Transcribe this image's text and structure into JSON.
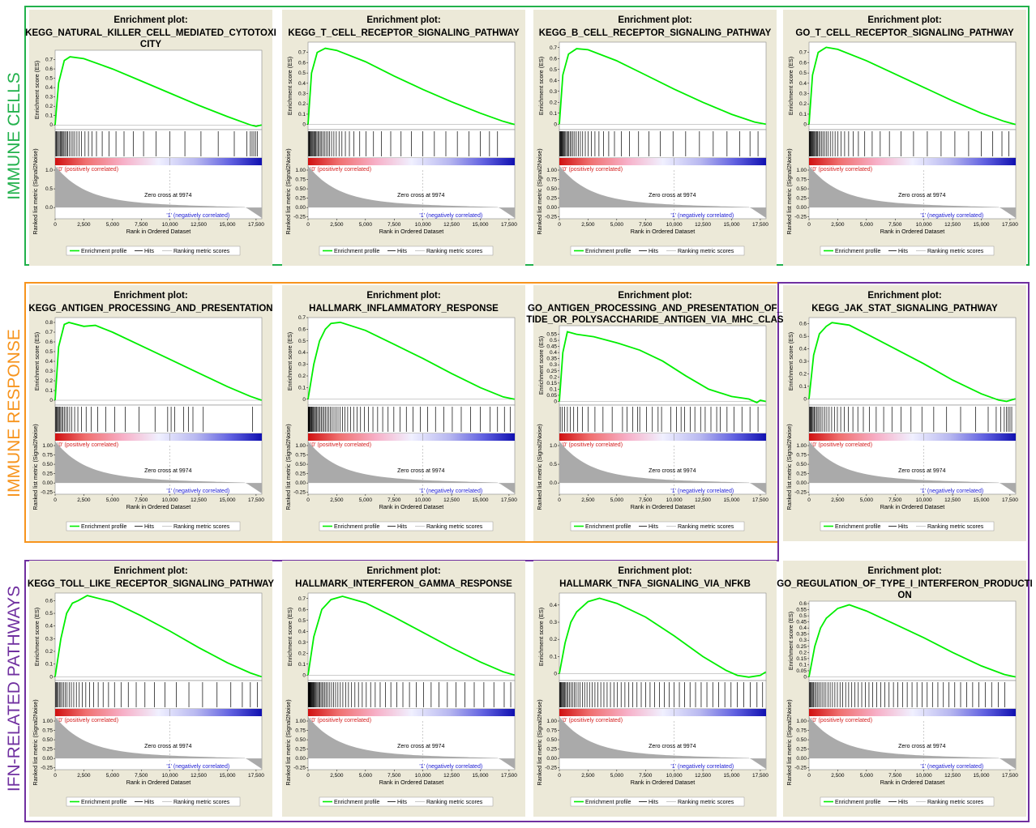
{
  "group_labels": [
    {
      "text": "IMMUNE CELLS",
      "color": "#22b14c"
    },
    {
      "text": "IMMUNE RESPONSE",
      "color": "#f7941d"
    },
    {
      "text": "IFN-RELATED PATHWAYS",
      "color": "#7030a0"
    }
  ],
  "common": {
    "plot_heading": "Enrichment plot:",
    "es_ylabel": "Enrichment score (ES)",
    "metric_ylabel": "Ranked list metric (Signal2Noise)",
    "xlabel": "Rank in Ordered Dataset",
    "pos_label": "'0' (positively correlated)",
    "neg_label": "'1' (negatively correlated)",
    "zero_cross": "Zero cross at 9974",
    "legend": [
      "Enrichment profile",
      "Hits",
      "Ranking metric scores"
    ],
    "x_ticks": [
      "0",
      "2,500",
      "5,000",
      "7,500",
      "10,000",
      "12,500",
      "15,000",
      "17,500"
    ],
    "metric_ticks": [
      "1.00",
      "0.75",
      "0.50",
      "0.25",
      "0.00",
      "-0.25"
    ],
    "colors": {
      "es_line": "#00ee00",
      "panel_bg": "#ece9d8",
      "hit": "#000000",
      "metric": "#aaaaaa",
      "pos_label": "#d42020",
      "neg_label": "#2020d4"
    }
  },
  "chart_data": [
    {
      "type": "line",
      "title": [
        "KEGG_NATURAL_KILLER_CELL_MEDIATED_CYTOTOXI",
        "CITY"
      ],
      "xlim": [
        0,
        18000
      ],
      "ylim": [
        -0.05,
        0.8
      ],
      "es_ticks": [
        0,
        0.1,
        0.2,
        0.3,
        0.4,
        0.5,
        0.6,
        0.7
      ],
      "metric_ticks": [
        "1.0",
        "0.5",
        "0.0"
      ],
      "x": [
        0,
        300,
        800,
        1300,
        2500,
        5000,
        7500,
        10000,
        12500,
        15000,
        17000,
        17500,
        17976
      ],
      "y": [
        0,
        0.45,
        0.69,
        0.73,
        0.71,
        0.6,
        0.47,
        0.34,
        0.21,
        0.09,
        0.0,
        -0.015,
        0.0
      ],
      "hits": [
        60,
        120,
        190,
        280,
        360,
        450,
        520,
        620,
        700,
        780,
        900,
        1000,
        1100,
        1250,
        1400,
        1550,
        1700,
        1900,
        2100,
        2300,
        2600,
        2900,
        3200,
        3600,
        4100,
        4700,
        5300,
        6000,
        6800,
        7700,
        8800,
        10000,
        11300,
        12700,
        14200,
        15600,
        16700,
        17000,
        17150,
        17300,
        17450,
        17600
      ]
    },
    {
      "type": "line",
      "title": [
        "KEGG_T_CELL_RECEPTOR_SIGNALING_PATHWAY"
      ],
      "xlim": [
        0,
        18000
      ],
      "ylim": [
        -0.05,
        0.8
      ],
      "es_ticks": [
        0,
        0.1,
        0.2,
        0.3,
        0.4,
        0.5,
        0.6,
        0.7
      ],
      "metric_ticks": [
        "1.00",
        "0.75",
        "0.50",
        "0.25",
        "0.00",
        "-0.25"
      ],
      "x": [
        0,
        300,
        800,
        1500,
        2500,
        5000,
        7500,
        10000,
        12500,
        15000,
        17000,
        17976
      ],
      "y": [
        0,
        0.5,
        0.7,
        0.74,
        0.72,
        0.61,
        0.47,
        0.34,
        0.22,
        0.11,
        0.03,
        0.0
      ],
      "hits": [
        40,
        80,
        130,
        180,
        240,
        300,
        370,
        440,
        520,
        600,
        680,
        770,
        860,
        960,
        1070,
        1180,
        1300,
        1430,
        1570,
        1720,
        1880,
        2050,
        2250,
        2460,
        2700,
        2950,
        3250,
        3600,
        4000,
        4500,
        5050,
        5700,
        6400,
        7200,
        8100,
        9000,
        10000,
        11000,
        12000,
        13000,
        14000,
        15000,
        15800,
        16500
      ]
    },
    {
      "type": "line",
      "title": [
        "KEGG_B_CELL_RECEPTOR_SIGNALING_PATHWAY"
      ],
      "xlim": [
        0,
        18000
      ],
      "ylim": [
        -0.05,
        0.75
      ],
      "es_ticks": [
        0,
        0.1,
        0.2,
        0.3,
        0.4,
        0.5,
        0.6,
        0.7
      ],
      "metric_ticks": [
        "1.00",
        "0.75",
        "0.50",
        "0.25",
        "0.00",
        "-0.25"
      ],
      "x": [
        0,
        300,
        800,
        1500,
        2500,
        5000,
        7500,
        10000,
        12500,
        15000,
        17000,
        17976
      ],
      "y": [
        0,
        0.45,
        0.64,
        0.69,
        0.68,
        0.58,
        0.45,
        0.32,
        0.2,
        0.09,
        0.02,
        0.0
      ],
      "hits": [
        30,
        70,
        110,
        160,
        210,
        270,
        330,
        400,
        470,
        550,
        640,
        730,
        830,
        940,
        1060,
        1190,
        1330,
        1480,
        1650,
        1830,
        2030,
        2260,
        2500,
        2780,
        3100,
        3450,
        3850,
        4300,
        4800,
        5400,
        6100,
        6900,
        7800,
        8800,
        9900,
        11000,
        12200,
        13400,
        14600,
        15700,
        16600,
        17300
      ]
    },
    {
      "type": "line",
      "title": [
        "GO_T_CELL_RECEPTOR_SIGNALING_PATHWAY"
      ],
      "xlim": [
        0,
        18000
      ],
      "ylim": [
        -0.05,
        0.8
      ],
      "es_ticks": [
        0,
        0.1,
        0.2,
        0.3,
        0.4,
        0.5,
        0.6,
        0.7
      ],
      "metric_ticks": [
        "1.00",
        "0.75",
        "0.50",
        "0.25",
        "0.00",
        "-0.25"
      ],
      "x": [
        0,
        300,
        800,
        1500,
        2500,
        5000,
        7500,
        10000,
        12500,
        15000,
        17000,
        17976
      ],
      "y": [
        0,
        0.48,
        0.7,
        0.75,
        0.73,
        0.62,
        0.49,
        0.36,
        0.23,
        0.11,
        0.03,
        0.0
      ],
      "hits": [
        30,
        60,
        100,
        140,
        190,
        240,
        300,
        360,
        430,
        500,
        580,
        660,
        750,
        850,
        960,
        1080,
        1210,
        1350,
        1500,
        1670,
        1850,
        2050,
        2270,
        2520,
        2800,
        3100,
        3450,
        3850,
        4300,
        4850,
        5500,
        6200,
        7000,
        8000,
        9100,
        10300,
        11500,
        12700,
        13900,
        15000,
        16000,
        16800,
        17400
      ]
    },
    {
      "type": "line",
      "title": [
        "KEGG_ANTIGEN_PROCESSING_AND_PRESENTATION"
      ],
      "xlim": [
        0,
        18000
      ],
      "ylim": [
        -0.05,
        0.85
      ],
      "es_ticks": [
        0,
        0.1,
        0.2,
        0.3,
        0.4,
        0.5,
        0.6,
        0.7,
        0.8
      ],
      "metric_ticks": [
        "1.00",
        "0.75",
        "0.50",
        "0.25",
        "0.00",
        "-0.25"
      ],
      "x": [
        0,
        300,
        800,
        1200,
        2500,
        3500,
        5000,
        7500,
        10000,
        12500,
        15000,
        17000,
        17976
      ],
      "y": [
        0,
        0.55,
        0.78,
        0.8,
        0.76,
        0.77,
        0.7,
        0.56,
        0.42,
        0.28,
        0.14,
        0.04,
        0.0
      ],
      "hits": [
        40,
        90,
        150,
        220,
        300,
        390,
        480,
        580,
        690,
        810,
        950,
        1100,
        1270,
        1460,
        1700,
        1980,
        2300,
        2700,
        3150,
        3700,
        4400,
        5200,
        6100,
        7300,
        8700,
        9800,
        10100,
        10400,
        11200,
        11600,
        12000,
        12900,
        17200
      ]
    },
    {
      "type": "line",
      "title": [
        "HALLMARK_INFLAMMATORY_RESPONSE"
      ],
      "xlim": [
        0,
        18000
      ],
      "ylim": [
        -0.05,
        0.7
      ],
      "es_ticks": [
        0,
        0.1,
        0.2,
        0.3,
        0.4,
        0.5,
        0.6,
        0.7
      ],
      "metric_ticks": [
        "1.00",
        "0.75",
        "0.50",
        "0.25",
        "0.00",
        "-0.25"
      ],
      "x": [
        0,
        500,
        1000,
        1500,
        2000,
        2800,
        5000,
        7500,
        10000,
        12500,
        15000,
        17000,
        17976
      ],
      "y": [
        0,
        0.3,
        0.5,
        0.6,
        0.65,
        0.66,
        0.59,
        0.47,
        0.35,
        0.22,
        0.1,
        0.02,
        0.0
      ],
      "hits": [
        20,
        50,
        90,
        130,
        180,
        230,
        290,
        350,
        420,
        490,
        570,
        650,
        740,
        840,
        940,
        1050,
        1160,
        1280,
        1400,
        1530,
        1660,
        1800,
        1950,
        2100,
        2260,
        2430,
        2610,
        2800,
        3000,
        3220,
        3450,
        3700,
        3970,
        4260,
        4570,
        4900,
        5260,
        5650,
        6060,
        6500,
        6970,
        7470,
        8000,
        8560,
        9150,
        9770,
        10420,
        11100,
        11820,
        12560,
        13340,
        14150,
        14990,
        15860,
        16500,
        17100,
        17600
      ]
    },
    {
      "type": "line",
      "title": [
        "GO_ANTIGEN_PROCESSING_AND_PRESENTATION_OF_",
        "TIDE_OR_POLYSACCHARIDE_ANTIGEN_VIA_MHC_CLAS"
      ],
      "xlim": [
        0,
        18000
      ],
      "ylim": [
        -0.03,
        0.62
      ],
      "es_ticks": [
        0,
        0.05,
        0.1,
        0.15,
        0.2,
        0.25,
        0.3,
        0.35,
        0.4,
        0.45,
        0.5,
        0.55
      ],
      "metric_ticks": [
        "1.0",
        "0.5",
        "0.0"
      ],
      "x": [
        0,
        300,
        700,
        1500,
        3000,
        5000,
        7000,
        9000,
        11000,
        13000,
        15000,
        16500,
        17200,
        17500,
        17976
      ],
      "y": [
        0,
        0.4,
        0.57,
        0.55,
        0.53,
        0.48,
        0.42,
        0.33,
        0.21,
        0.1,
        0.04,
        0.02,
        -0.01,
        0.01,
        0.0
      ],
      "hits": [
        80,
        250,
        450,
        700,
        950,
        1250,
        1600,
        2000,
        2500,
        3100,
        3800,
        4600,
        5500,
        5900,
        6400,
        6800,
        7000,
        7600,
        8100,
        8600,
        8900,
        9700,
        10200,
        10600,
        10900,
        11400,
        11800,
        12300,
        12700,
        13200,
        13700,
        14000,
        14600,
        15200,
        15900,
        16600,
        17300
      ]
    },
    {
      "type": "line",
      "title": [
        "KEGG_JAK_STAT_SIGNALING_PATHWAY"
      ],
      "xlim": [
        0,
        18000
      ],
      "ylim": [
        -0.05,
        0.65
      ],
      "es_ticks": [
        0,
        0.1,
        0.2,
        0.3,
        0.4,
        0.5,
        0.6
      ],
      "metric_ticks": [
        "1.00",
        "0.75",
        "0.50",
        "0.25",
        "0.00",
        "-0.25"
      ],
      "x": [
        0,
        400,
        900,
        1500,
        2000,
        3500,
        5000,
        7500,
        10000,
        12500,
        15000,
        16500,
        17200,
        17976
      ],
      "y": [
        0,
        0.35,
        0.52,
        0.58,
        0.61,
        0.59,
        0.52,
        0.4,
        0.28,
        0.15,
        0.04,
        -0.01,
        -0.02,
        0.0
      ],
      "hits": [
        40,
        90,
        150,
        210,
        280,
        360,
        450,
        550,
        660,
        780,
        910,
        1050,
        1200,
        1370,
        1550,
        1750,
        1970,
        2210,
        2470,
        2760,
        3080,
        3430,
        3820,
        4250,
        4730,
        5260,
        5850,
        6500,
        7220,
        8010,
        8880,
        9830,
        10860,
        11980,
        13200,
        14500,
        15600,
        16300,
        16700,
        17000,
        17200,
        17350,
        17500,
        17650
      ]
    },
    {
      "type": "line",
      "title": [
        "KEGG_TOLL_LIKE_RECEPTOR_SIGNALING_PATHWAY"
      ],
      "xlim": [
        0,
        18000
      ],
      "ylim": [
        -0.03,
        0.66
      ],
      "es_ticks": [
        0,
        0.1,
        0.2,
        0.3,
        0.4,
        0.5,
        0.6
      ],
      "metric_ticks": [
        "1.00",
        "0.75",
        "0.50",
        "0.25",
        "0.00",
        "-0.25"
      ],
      "x": [
        0,
        500,
        1000,
        1500,
        2000,
        2800,
        5000,
        7500,
        10000,
        12500,
        15000,
        17000,
        17976
      ],
      "y": [
        0,
        0.3,
        0.5,
        0.58,
        0.6,
        0.64,
        0.59,
        0.48,
        0.36,
        0.23,
        0.11,
        0.03,
        0.0
      ],
      "hits": [
        40,
        100,
        180,
        270,
        370,
        480,
        600,
        730,
        880,
        1040,
        1220,
        1410,
        1620,
        1850,
        2100,
        2370,
        2670,
        3000,
        3360,
        3750,
        4180,
        4650,
        5170,
        5740,
        6370,
        7060,
        7820,
        8650,
        9560,
        10560,
        11650,
        12840,
        14100,
        15300,
        16300,
        17000,
        17600
      ]
    },
    {
      "type": "line",
      "title": [
        "HALLMARK_INTERFERON_GAMMA_RESPONSE"
      ],
      "xlim": [
        0,
        18000
      ],
      "ylim": [
        -0.05,
        0.75
      ],
      "es_ticks": [
        0,
        0.1,
        0.2,
        0.3,
        0.4,
        0.5,
        0.6,
        0.7
      ],
      "metric_ticks": [
        "1.00",
        "0.75",
        "0.50",
        "0.25",
        "0.00",
        "-0.25"
      ],
      "x": [
        0,
        500,
        1200,
        2000,
        3000,
        5000,
        7500,
        10000,
        12500,
        15000,
        17000,
        17976
      ],
      "y": [
        0,
        0.35,
        0.6,
        0.69,
        0.72,
        0.66,
        0.53,
        0.39,
        0.25,
        0.12,
        0.03,
        0.0
      ],
      "hits": [
        20,
        45,
        70,
        100,
        130,
        160,
        200,
        240,
        280,
        330,
        380,
        430,
        490,
        550,
        620,
        690,
        770,
        850,
        940,
        1030,
        1130,
        1240,
        1350,
        1470,
        1600,
        1740,
        1890,
        2050,
        2220,
        2400,
        2600,
        2810,
        3030,
        3270,
        3520,
        3790,
        4080,
        4390,
        4720,
        5070,
        5450,
        5850,
        6280,
        6730,
        7210,
        7720,
        8260,
        8830,
        9430,
        10060,
        10720,
        11410,
        12130,
        12880,
        13660,
        14470,
        15310,
        16180,
        17080,
        17650
      ]
    },
    {
      "type": "line",
      "title": [
        "HALLMARK_TNFA_SIGNALING_VIA_NFKB"
      ],
      "xlim": [
        0,
        18000
      ],
      "ylim": [
        -0.04,
        0.47
      ],
      "es_ticks": [
        0,
        0.1,
        0.2,
        0.3,
        0.4
      ],
      "metric_ticks": [
        "1.00",
        "0.75",
        "0.50",
        "0.25",
        "0.00",
        "-0.25"
      ],
      "x": [
        0,
        500,
        1000,
        1500,
        2500,
        3500,
        5000,
        7500,
        10000,
        12500,
        14500,
        15500,
        16500,
        17500,
        17976
      ],
      "y": [
        0,
        0.18,
        0.3,
        0.36,
        0.42,
        0.44,
        0.41,
        0.33,
        0.22,
        0.1,
        0.02,
        -0.01,
        -0.02,
        -0.01,
        0.01
      ],
      "hits": [
        30,
        70,
        120,
        170,
        230,
        300,
        380,
        460,
        550,
        650,
        760,
        880,
        1010,
        1150,
        1300,
        1460,
        1630,
        1810,
        2000,
        2200,
        2410,
        2630,
        2860,
        3100,
        3350,
        3610,
        3880,
        4160,
        4450,
        4750,
        5060,
        5380,
        5710,
        6050,
        6400,
        6760,
        7130,
        7510,
        7900,
        8300,
        8710,
        9130,
        9560,
        10000,
        10450,
        10910,
        11380,
        11860,
        12350,
        12850,
        13360,
        13880,
        14410,
        14950,
        15500,
        16060,
        16630,
        17210,
        17700
      ]
    },
    {
      "type": "line",
      "title": [
        "GO_REGULATION_OF_TYPE_I_INTERFERON_PRODUCTI",
        "ON"
      ],
      "xlim": [
        0,
        18000
      ],
      "ylim": [
        -0.03,
        0.62
      ],
      "es_ticks": [
        0,
        0.05,
        0.1,
        0.15,
        0.2,
        0.25,
        0.3,
        0.35,
        0.4,
        0.45,
        0.5,
        0.55,
        0.6
      ],
      "metric_ticks": [
        "1.00",
        "0.75",
        "0.50",
        "0.25",
        "0.00",
        "-0.25"
      ],
      "x": [
        0,
        500,
        1000,
        1500,
        2500,
        3500,
        5000,
        7500,
        10000,
        12500,
        15000,
        17000,
        17976
      ],
      "y": [
        0,
        0.25,
        0.4,
        0.48,
        0.56,
        0.59,
        0.54,
        0.43,
        0.32,
        0.2,
        0.09,
        0.02,
        0.0
      ],
      "hits": [
        40,
        90,
        150,
        220,
        300,
        390,
        490,
        600,
        720,
        850,
        990,
        1140,
        1300,
        1470,
        1650,
        1840,
        2040,
        2250,
        2470,
        2700,
        2940,
        3190,
        3450,
        3720,
        4000,
        4290,
        4590,
        4900,
        5220,
        5550,
        5890,
        6240,
        6600,
        6970,
        7350,
        7740,
        8140,
        8550,
        8970,
        9400,
        9840,
        10290,
        10750,
        11220,
        11700,
        12190,
        12690,
        13200,
        13720,
        14250,
        14790,
        15340,
        15900,
        16470,
        17050
      ]
    }
  ]
}
